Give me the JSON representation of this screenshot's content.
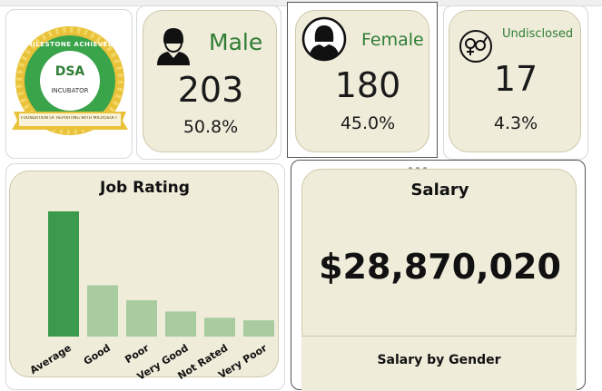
{
  "kpis": {
    "male": {
      "label": "Male",
      "count": "203",
      "pct": "50.8%",
      "icon": "male-user-icon"
    },
    "female": {
      "label": "Female",
      "count": "180",
      "pct": "45.0%",
      "icon": "female-user-icon"
    },
    "undisclosed": {
      "label": "Undisclosed",
      "count": "17",
      "pct": "4.3%",
      "icon": "gender-symbols-icon"
    }
  },
  "badge": {
    "top_text": "MILESTONE ACHIEVED",
    "center_text": "DSA",
    "sub_text": "INCUBATOR",
    "ribbon_text": "FOUNDATION OF REPORTING WITH MICROSOFT EXCEL"
  },
  "job_rating": {
    "title": "Job Rating",
    "chart_data": {
      "type": "bar",
      "categories": [
        "Average",
        "Good",
        "Poor",
        "Very Good",
        "Not Rated",
        "Very Poor"
      ],
      "values": [
        100,
        41,
        29,
        20,
        15,
        13
      ],
      "ylim": [
        0,
        100
      ],
      "colors": [
        "#3b9a4c",
        "#a8cca0",
        "#a8cca0",
        "#a8cca0",
        "#a8cca0",
        "#a8cca0"
      ]
    }
  },
  "salary": {
    "title": "Salary",
    "value": "$28,870,020",
    "sub_title": "Salary by Gender"
  },
  "colors": {
    "accent_green": "#2f7d35",
    "card_bg": "#efecda"
  }
}
